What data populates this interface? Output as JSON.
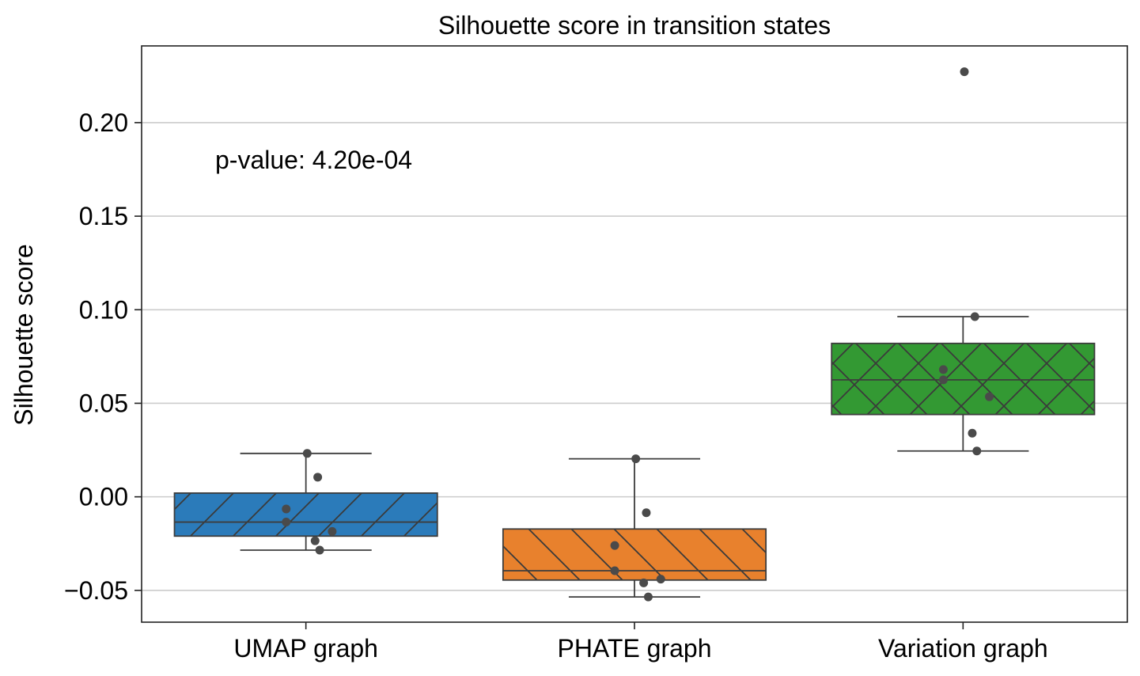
{
  "chart_data": {
    "type": "box",
    "title": "Silhouette score in transition states",
    "xlabel": "",
    "ylabel": "Silhouette score",
    "ylim": [
      -0.067,
      0.241
    ],
    "yticks": [
      -0.05,
      0.0,
      0.05,
      0.1,
      0.15,
      0.2
    ],
    "ytick_labels": [
      "−0.05",
      "0.00",
      "0.05",
      "0.10",
      "0.15",
      "0.20"
    ],
    "grid": "horizontal",
    "annotation": "p-value: 4.20e-04",
    "categories": [
      "UMAP graph",
      "PHATE graph",
      "Variation graph"
    ],
    "boxes": [
      {
        "category": "UMAP graph",
        "color": "#2b7bba",
        "hatch": "forward-diagonal",
        "whisker_low": -0.0285,
        "q1": -0.021,
        "median": -0.0135,
        "q3": 0.002,
        "whisker_high": 0.0232,
        "points": [
          0.0232,
          0.0105,
          -0.0065,
          -0.0135,
          -0.0185,
          -0.0235,
          -0.0285
        ]
      },
      {
        "category": "PHATE graph",
        "color": "#e8812d",
        "hatch": "back-diagonal",
        "whisker_low": -0.0535,
        "q1": -0.0445,
        "median": -0.0395,
        "q3": -0.0172,
        "whisker_high": 0.0203,
        "points": [
          0.0203,
          -0.0085,
          -0.026,
          -0.0395,
          -0.044,
          -0.046,
          -0.0535
        ]
      },
      {
        "category": "Variation graph",
        "color": "#339933",
        "hatch": "crosshatch",
        "whisker_low": 0.0245,
        "q1": 0.044,
        "median": 0.0625,
        "q3": 0.082,
        "whisker_high": 0.0963,
        "points": [
          0.2272,
          0.0963,
          0.068,
          0.0625,
          0.0535,
          0.034,
          0.0245
        ]
      }
    ]
  }
}
